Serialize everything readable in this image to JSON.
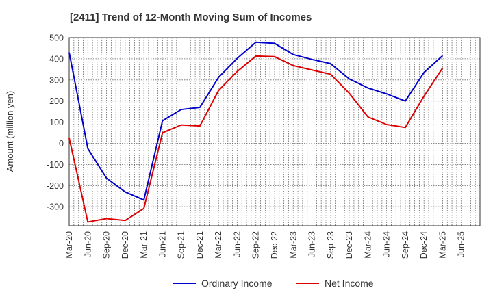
{
  "chart_data": {
    "type": "line",
    "title": "[2411]  Trend of 12-Month Moving Sum of Incomes",
    "xlabel": "",
    "ylabel": "Amount (million yen)",
    "ylim": [
      -390,
      500
    ],
    "yticks": [
      500,
      400,
      300,
      200,
      100,
      0,
      -100,
      -200,
      -300
    ],
    "grid": true,
    "legend_position": "bottom",
    "categories": [
      "Mar-20",
      "Jun-20",
      "Sep-20",
      "Dec-20",
      "Mar-21",
      "Jun-21",
      "Sep-21",
      "Dec-21",
      "Mar-22",
      "Jun-22",
      "Sep-22",
      "Dec-22",
      "Mar-23",
      "Jun-23",
      "Sep-23",
      "Dec-23",
      "Mar-24",
      "Jun-24",
      "Sep-24",
      "Dec-24",
      "Mar-25",
      "Jun-25"
    ],
    "series": [
      {
        "name": "Ordinary Income",
        "color": "#0000cc",
        "values": [
          430,
          -25,
          -165,
          -230,
          -268,
          107,
          160,
          170,
          312,
          402,
          478,
          473,
          420,
          397,
          377,
          305,
          262,
          234,
          200,
          335,
          415,
          null
        ]
      },
      {
        "name": "Net Income",
        "color": "#dd0000",
        "values": [
          25,
          -372,
          -356,
          -365,
          -308,
          50,
          87,
          82,
          250,
          340,
          413,
          410,
          368,
          347,
          327,
          237,
          125,
          89,
          75,
          223,
          357,
          null
        ]
      }
    ]
  }
}
